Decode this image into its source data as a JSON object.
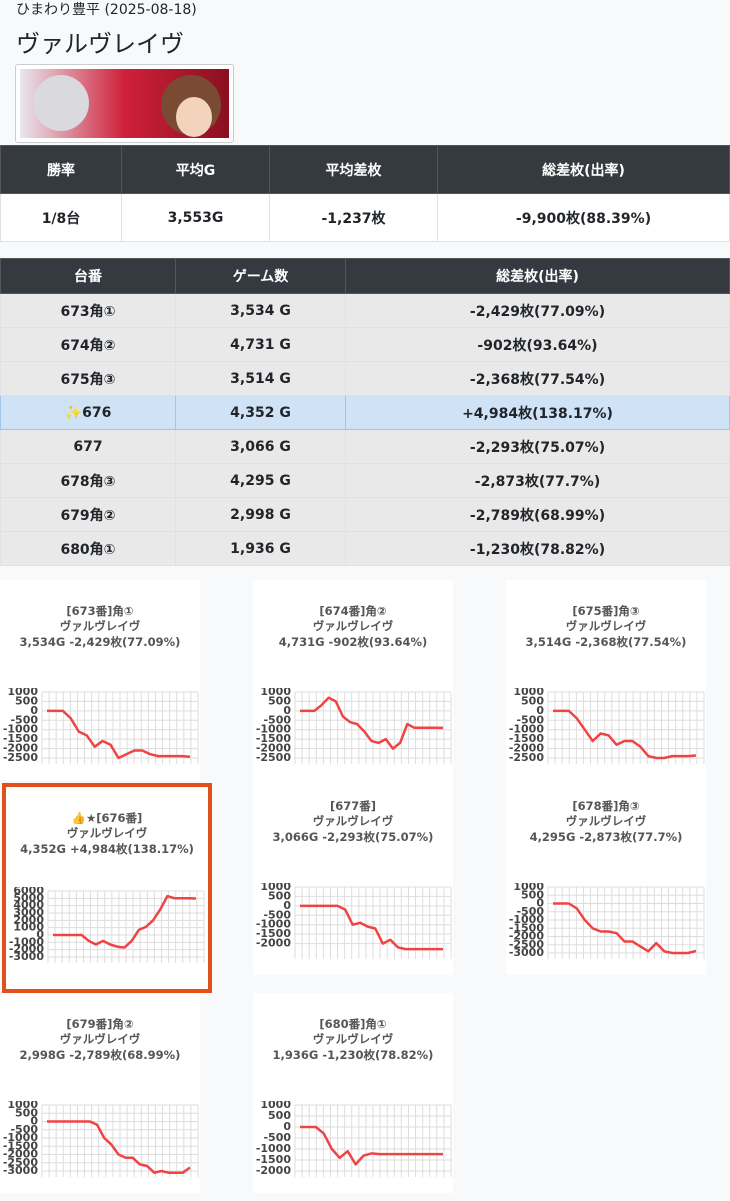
{
  "header": {
    "store": "ひまわり豊平 (2025-08-18)",
    "title": "ヴァルヴレイヴ"
  },
  "summary": {
    "headers": [
      "勝率",
      "平均G",
      "平均差枚",
      "総差枚(出率)"
    ],
    "row": [
      "1/8台",
      "3,553G",
      "-1,237枚",
      "-9,900枚(88.39%)"
    ]
  },
  "machines": {
    "headers": [
      "台番",
      "ゲーム数",
      "総差枚(出率)"
    ],
    "rows": [
      {
        "number": "673角①",
        "games": "3,534 G",
        "diff": "-2,429枚(77.09%)"
      },
      {
        "number": "674角②",
        "games": "4,731 G",
        "diff": "-902枚(93.64%)"
      },
      {
        "number": "675角③",
        "games": "3,514 G",
        "diff": "-2,368枚(77.54%)"
      },
      {
        "number": "✨676",
        "games": "4,352 G",
        "diff": "+4,984枚(138.17%)",
        "highlight": true
      },
      {
        "number": "677",
        "games": "3,066 G",
        "diff": "-2,293枚(75.07%)"
      },
      {
        "number": "678角③",
        "games": "4,295 G",
        "diff": "-2,873枚(77.7%)"
      },
      {
        "number": "679角②",
        "games": "2,998 G",
        "diff": "-2,789枚(68.99%)"
      },
      {
        "number": "680角①",
        "games": "1,936 G",
        "diff": "-1,230枚(78.82%)"
      }
    ]
  },
  "chart_data": [
    {
      "type": "line",
      "title": "[673番]角①",
      "subtitle": "ヴァルヴレイヴ",
      "caption": "3,534G -2,429枚(77.09%)",
      "color": "#ef4444",
      "values": [
        0,
        0,
        0,
        -400,
        -1100,
        -1300,
        -1900,
        -1600,
        -1800,
        -2500,
        -2300,
        -2100,
        -2100,
        -2300,
        -2400,
        -2400,
        -2400,
        -2400,
        -2429
      ],
      "ylim": [
        -2500,
        1000
      ],
      "yticks": [
        1000,
        500,
        0,
        -500,
        -1000,
        -1500,
        -2000,
        -2500
      ],
      "grid": true
    },
    {
      "type": "line",
      "title": "[674番]角②",
      "subtitle": "ヴァルヴレイヴ",
      "caption": "4,731G -902枚(93.64%)",
      "color": "#ef4444",
      "values": [
        0,
        0,
        0,
        300,
        700,
        500,
        -300,
        -600,
        -700,
        -1100,
        -1600,
        -1700,
        -1500,
        -2000,
        -1700,
        -700,
        -900,
        -900,
        -900,
        -900,
        -902
      ],
      "ylim": [
        -2500,
        1000
      ],
      "yticks": [
        1000,
        500,
        0,
        -500,
        -1000,
        -1500,
        -2000,
        -2500
      ],
      "grid": true
    },
    {
      "type": "line",
      "title": "[675番]角③",
      "subtitle": "ヴァルヴレイヴ",
      "caption": "3,514G -2,368枚(77.54%)",
      "color": "#ef4444",
      "values": [
        0,
        0,
        0,
        -400,
        -1000,
        -1600,
        -1200,
        -1300,
        -1800,
        -1600,
        -1600,
        -1900,
        -2400,
        -2500,
        -2500,
        -2400,
        -2400,
        -2400,
        -2368
      ],
      "ylim": [
        -2500,
        1000
      ],
      "yticks": [
        1000,
        500,
        0,
        -500,
        -1000,
        -1500,
        -2000,
        -2500
      ],
      "grid": true
    },
    {
      "type": "line",
      "title": "👍★[676番]",
      "subtitle": "ヴァルヴレイヴ",
      "caption": "4,352G +4,984枚(138.17%)",
      "color": "#ef4444",
      "highlight": true,
      "values": [
        0,
        0,
        0,
        0,
        0,
        -800,
        -1300,
        -800,
        -1300,
        -1600,
        -1700,
        -800,
        700,
        1100,
        2000,
        3500,
        5300,
        5000,
        5000,
        5000,
        4984
      ],
      "ylim": [
        -3000,
        6000
      ],
      "yticks": [
        6000,
        5000,
        4000,
        3000,
        2000,
        1000,
        0,
        -1000,
        -2000,
        -3000
      ],
      "grid": true
    },
    {
      "type": "line",
      "title": "[677番]",
      "subtitle": "ヴァルヴレイヴ",
      "caption": "3,066G -2,293枚(75.07%)",
      "color": "#ef4444",
      "values": [
        0,
        0,
        0,
        0,
        0,
        0,
        -200,
        -1000,
        -900,
        -1100,
        -1200,
        -2000,
        -1800,
        -2200,
        -2293,
        -2293,
        -2293,
        -2293,
        -2293,
        -2293
      ],
      "ylim": [
        -2500,
        1000
      ],
      "yticks": [
        1000,
        500,
        0,
        -500,
        -1000,
        -1500,
        -2000
      ],
      "grid": true
    },
    {
      "type": "line",
      "title": "[678番]角③",
      "subtitle": "ヴァルヴレイヴ",
      "caption": "4,295G -2,873枚(77.7%)",
      "color": "#ef4444",
      "values": [
        0,
        0,
        0,
        -300,
        -1000,
        -1500,
        -1700,
        -1700,
        -1800,
        -2300,
        -2300,
        -2600,
        -2900,
        -2400,
        -2900,
        -3000,
        -3000,
        -3000,
        -2873
      ],
      "ylim": [
        -3000,
        1000
      ],
      "yticks": [
        1000,
        500,
        0,
        -500,
        -1000,
        -1500,
        -2000,
        -2500,
        -3000
      ],
      "grid": true
    },
    {
      "type": "line",
      "title": "[679番]角②",
      "subtitle": "ヴァルヴレイヴ",
      "caption": "2,998G -2,789枚(68.99%)",
      "color": "#ef4444",
      "values": [
        0,
        0,
        0,
        0,
        0,
        0,
        0,
        -200,
        -1000,
        -1400,
        -2000,
        -2200,
        -2200,
        -2600,
        -2700,
        -3100,
        -3000,
        -3100,
        -3100,
        -3100,
        -2789
      ],
      "ylim": [
        -3000,
        1000
      ],
      "yticks": [
        1000,
        500,
        0,
        -500,
        -1000,
        -1500,
        -2000,
        -2500,
        -3000
      ],
      "grid": true
    },
    {
      "type": "line",
      "title": "[680番]角①",
      "subtitle": "ヴァルヴレイヴ",
      "caption": "1,936G -1,230枚(78.82%)",
      "color": "#ef4444",
      "values": [
        0,
        0,
        0,
        -300,
        -1000,
        -1400,
        -1100,
        -1700,
        -1300,
        -1200,
        -1230,
        -1230,
        -1230,
        -1230,
        -1230,
        -1230,
        -1230,
        -1230,
        -1230
      ],
      "ylim": [
        -2000,
        1000
      ],
      "yticks": [
        1000,
        500,
        0,
        -500,
        -1000,
        -1500,
        -2000
      ],
      "grid": true
    }
  ]
}
